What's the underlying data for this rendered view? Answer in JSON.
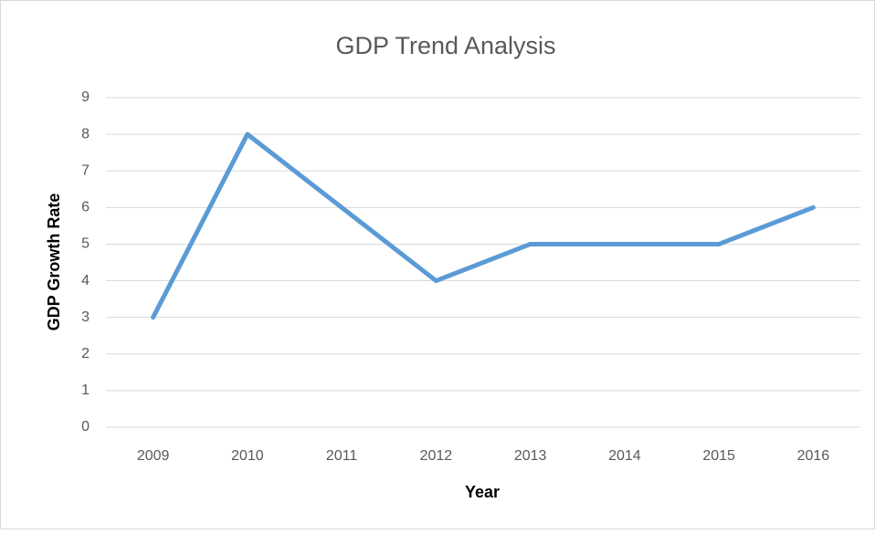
{
  "chart_data": {
    "type": "line",
    "title": "GDP Trend Analysis",
    "x_label": "Year",
    "y_label": "GDP Growth Rate",
    "categories": [
      "2009",
      "2010",
      "2011",
      "2012",
      "2013",
      "2014",
      "2015",
      "2016"
    ],
    "series": [
      {
        "name": "GDP Growth Rate",
        "color": "#5b9bd5",
        "values": [
          3,
          8,
          6,
          4,
          5,
          5,
          5,
          6
        ]
      }
    ],
    "ylim": [
      0,
      9
    ],
    "yticks": [
      0,
      1,
      2,
      3,
      4,
      5,
      6,
      7,
      8,
      9
    ],
    "grid": true
  }
}
